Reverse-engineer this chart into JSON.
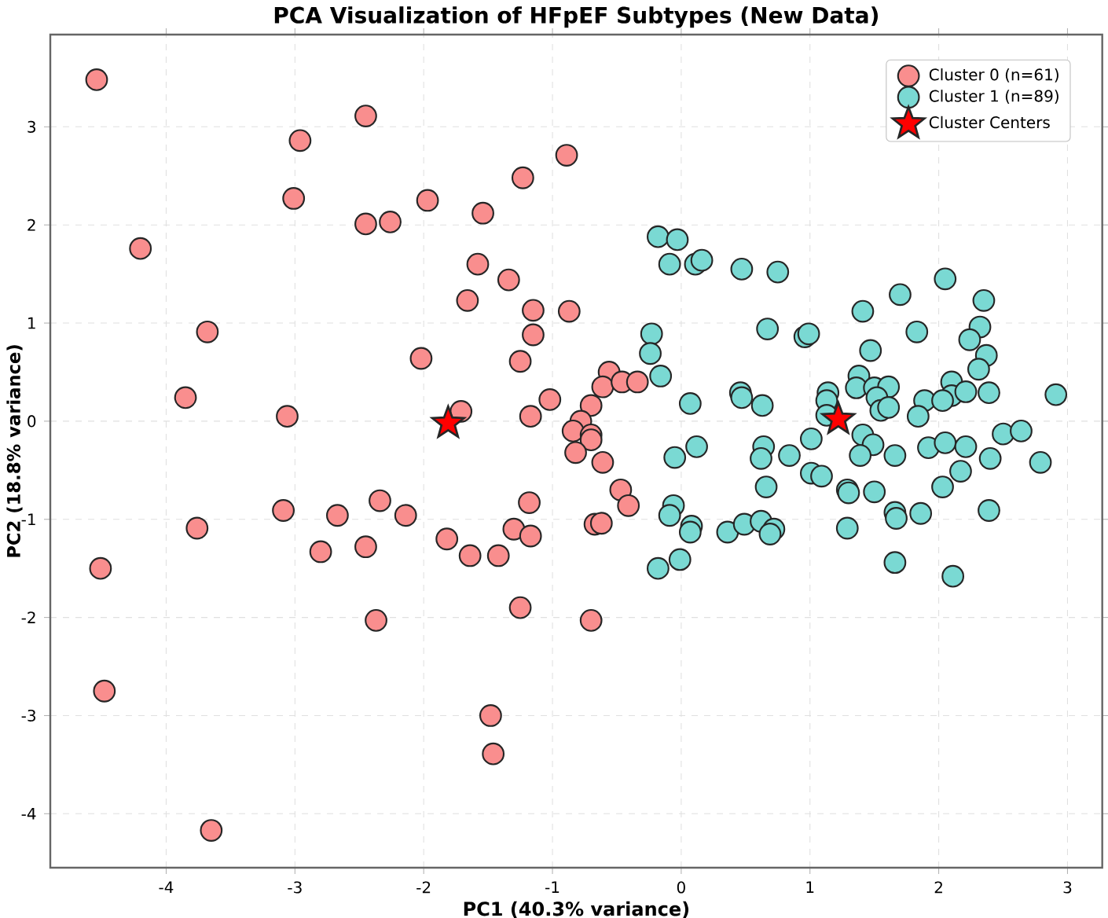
{
  "chart_data": {
    "type": "scatter",
    "title": "PCA Visualization of HFpEF Subtypes (New Data)",
    "xlabel": "PC1 (40.3% variance)",
    "ylabel": "PC2 (18.8% variance)",
    "xlim": [
      -4.9,
      3.27
    ],
    "ylim": [
      -4.55,
      3.94
    ],
    "xticks": [
      -4,
      -3,
      -2,
      -1,
      0,
      1,
      2,
      3
    ],
    "yticks": [
      -4,
      -3,
      -2,
      -1,
      0,
      1,
      2,
      3
    ],
    "grid": true,
    "legend": "top right",
    "marker": "circle",
    "series": [
      {
        "name": "Cluster 0 (n=61)",
        "color": "#f98e8e",
        "x": [
          -4.54,
          -2.45,
          -2.96,
          -3.01,
          -2.45,
          -2.26,
          -4.2,
          -3.68,
          -3.85,
          -3.06,
          -3.09,
          -2.67,
          -2.34,
          -2.14,
          -3.76,
          -4.51,
          -2.8,
          -2.45,
          -2.37,
          -4.48,
          -3.65,
          -0.89,
          -1.23,
          -1.97,
          -1.54,
          -1.58,
          -1.34,
          -1.66,
          -1.15,
          -0.87,
          -1.15,
          -2.02,
          -1.25,
          -0.56,
          -0.61,
          -0.46,
          -0.34,
          -1.02,
          -1.71,
          -0.7,
          -1.17,
          -0.78,
          -0.84,
          -0.7,
          -0.7,
          -0.82,
          -0.61,
          -0.47,
          -0.41,
          -1.18,
          -0.67,
          -0.62,
          -1.3,
          -1.17,
          -1.82,
          -1.64,
          -1.42,
          -1.25,
          -0.7,
          -1.48,
          -1.46
        ],
        "values": [
          3.48,
          3.11,
          2.86,
          2.27,
          2.01,
          2.03,
          1.76,
          0.91,
          0.24,
          0.05,
          -0.91,
          -0.96,
          -0.81,
          -0.96,
          -1.09,
          -1.5,
          -1.33,
          -1.28,
          -2.03,
          -2.75,
          -4.17,
          2.71,
          2.48,
          2.25,
          2.12,
          1.6,
          1.44,
          1.23,
          1.13,
          1.12,
          0.88,
          0.64,
          0.61,
          0.5,
          0.35,
          0.4,
          0.4,
          0.22,
          0.1,
          0.16,
          0.05,
          0.0,
          -0.1,
          -0.14,
          -0.19,
          -0.32,
          -0.42,
          -0.7,
          -0.86,
          -0.83,
          -1.05,
          -1.04,
          -1.1,
          -1.17,
          -1.2,
          -1.37,
          -1.37,
          -1.9,
          -2.03,
          -3.0,
          -3.39
        ]
      },
      {
        "name": "Cluster 1 (n=89)",
        "color": "#7ad9d3",
        "x": [
          -0.18,
          -0.03,
          -0.09,
          0.11,
          0.16,
          0.47,
          0.75,
          2.05,
          1.7,
          2.35,
          1.41,
          -0.23,
          0.67,
          0.96,
          0.99,
          1.83,
          2.32,
          2.24,
          -0.24,
          1.47,
          2.37,
          2.31,
          -0.16,
          1.38,
          1.36,
          1.5,
          1.61,
          2.1,
          2.1,
          2.21,
          2.39,
          2.91,
          0.46,
          0.47,
          0.07,
          0.63,
          1.14,
          1.13,
          1.52,
          1.55,
          1.61,
          1.89,
          2.03,
          1.84,
          1.13,
          1.41,
          2.5,
          2.64,
          1.01,
          1.49,
          0.12,
          0.64,
          1.92,
          2.05,
          2.21,
          -0.05,
          0.62,
          0.84,
          1.39,
          1.66,
          2.4,
          2.79,
          2.17,
          1.01,
          1.09,
          0.66,
          2.03,
          1.29,
          1.3,
          1.5,
          -0.06,
          -0.09,
          1.66,
          1.67,
          1.86,
          2.39,
          0.08,
          0.07,
          0.36,
          0.49,
          0.62,
          0.72,
          0.69,
          1.29,
          -0.18,
          -0.01,
          1.66,
          2.11
        ],
        "values": [
          1.88,
          1.85,
          1.6,
          1.6,
          1.64,
          1.55,
          1.52,
          1.45,
          1.29,
          1.23,
          1.12,
          0.89,
          0.94,
          0.86,
          0.89,
          0.91,
          0.96,
          0.83,
          0.69,
          0.72,
          0.67,
          0.53,
          0.46,
          0.46,
          0.34,
          0.34,
          0.35,
          0.4,
          0.26,
          0.3,
          0.29,
          0.27,
          0.29,
          0.24,
          0.18,
          0.16,
          0.29,
          0.21,
          0.24,
          0.11,
          0.14,
          0.21,
          0.21,
          0.05,
          0.06,
          -0.14,
          -0.13,
          -0.1,
          -0.18,
          -0.24,
          -0.26,
          -0.26,
          -0.27,
          -0.22,
          -0.26,
          -0.37,
          -0.38,
          -0.35,
          -0.35,
          -0.35,
          -0.38,
          -0.42,
          -0.51,
          -0.53,
          -0.56,
          -0.67,
          -0.67,
          -0.7,
          -0.73,
          -0.72,
          -0.86,
          -0.96,
          -0.93,
          -0.99,
          -0.94,
          -0.91,
          -1.07,
          -1.13,
          -1.13,
          -1.05,
          -1.02,
          -1.1,
          -1.15,
          -1.09,
          -1.5,
          -1.41,
          -1.44,
          -1.58
        ]
      },
      {
        "name": "Cluster Centers",
        "color": "#ff0000",
        "marker": "star",
        "x": [
          -1.81,
          1.22
        ],
        "values": [
          -0.02,
          0.02
        ]
      }
    ]
  }
}
